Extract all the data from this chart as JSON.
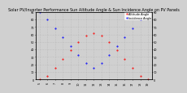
{
  "title": "Solar PV/Inverter Performance Sun Altitude Angle & Sun Incidence Angle on PV Panels",
  "legend_labels": [
    "Altitude Angle",
    "Incidence Angle"
  ],
  "colors": [
    "red",
    "blue"
  ],
  "background_color": "#d0d0d0",
  "grid_color": "#b0b0b0",
  "times": [
    5,
    6,
    7,
    8,
    9,
    10,
    11,
    12,
    13,
    14,
    15,
    16,
    17,
    18,
    19
  ],
  "altitude": [
    0,
    5,
    15,
    27,
    39,
    50,
    58,
    62,
    58,
    50,
    39,
    27,
    15,
    5,
    0
  ],
  "incidence": [
    90,
    80,
    68,
    56,
    44,
    33,
    22,
    15,
    22,
    33,
    44,
    56,
    68,
    80,
    90
  ],
  "xlim": [
    4.5,
    19.5
  ],
  "ylim": [
    0,
    90
  ],
  "title_fontsize": 3.5,
  "legend_fontsize": 2.5,
  "tick_fontsize": 2.5,
  "marker_size": 1.0,
  "xlabel_labels": [
    "5",
    "6",
    "7",
    "8",
    "9",
    "10",
    "11",
    "12",
    "13",
    "14",
    "15",
    "16",
    "17",
    "18",
    "19"
  ],
  "yticks": [
    0,
    10,
    20,
    30,
    40,
    50,
    60,
    70,
    80,
    90
  ],
  "legend_dot_color_1": "#ff0000",
  "legend_dot_color_2": "#0000ff",
  "legend_bar_color": "#cc0000"
}
